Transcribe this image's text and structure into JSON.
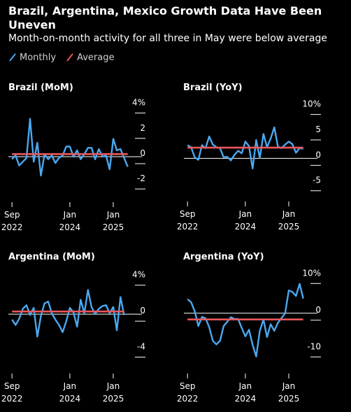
{
  "header": {
    "title": "Brazil, Argentina, Mexico Growth Data Have Been Uneven",
    "subtitle": "Month-on-month activity for all three in May were below average"
  },
  "legend": [
    {
      "label": "Monthly",
      "color": "#4aa8f0"
    },
    {
      "label": "Average",
      "color": "#e8575b"
    }
  ],
  "colors": {
    "monthly": "#4aa8f0",
    "average": "#e8575b",
    "axis": "#ffffff",
    "background": "#000000"
  },
  "chart_data": [
    {
      "type": "line",
      "title": "Brazil (MoM)",
      "x_ticks": [
        {
          "month": "2022-09",
          "top": "Sep",
          "bottom": "2022"
        },
        {
          "month": "2024-01",
          "top": "Jan",
          "bottom": "2024"
        },
        {
          "month": "2025-01",
          "top": "Jan",
          "bottom": "2025"
        }
      ],
      "x_range": [
        "2022-08",
        "2025-07"
      ],
      "ylim": [
        -2.6,
        4.2
      ],
      "y_ticks": [
        {
          "value": 4,
          "label": "4%"
        },
        {
          "value": 2,
          "label": "2"
        },
        {
          "value": 0,
          "label": "0"
        },
        {
          "value": -2,
          "label": "-2"
        }
      ],
      "average": 0.2,
      "series": [
        {
          "values": [
            {
              "month": "2022-09",
              "value": -0.2
            },
            {
              "month": "2022-10",
              "value": 0.1
            },
            {
              "month": "2022-11",
              "value": -0.7
            },
            {
              "month": "2022-12",
              "value": -0.4
            },
            {
              "month": "2023-01",
              "value": -0.1
            },
            {
              "month": "2023-02",
              "value": 3.0
            },
            {
              "month": "2023-03",
              "value": -0.4
            },
            {
              "month": "2023-04",
              "value": 1.1
            },
            {
              "month": "2023-05",
              "value": -1.5
            },
            {
              "month": "2023-06",
              "value": 0.2
            },
            {
              "month": "2023-07",
              "value": -0.2
            },
            {
              "month": "2023-08",
              "value": 0.1
            },
            {
              "month": "2023-09",
              "value": -0.5
            },
            {
              "month": "2023-10",
              "value": -0.1
            },
            {
              "month": "2023-11",
              "value": 0.1
            },
            {
              "month": "2023-12",
              "value": 0.8
            },
            {
              "month": "2024-01",
              "value": 0.8
            },
            {
              "month": "2024-02",
              "value": 0.0
            },
            {
              "month": "2024-03",
              "value": 0.5
            },
            {
              "month": "2024-04",
              "value": -0.2
            },
            {
              "month": "2024-05",
              "value": 0.2
            },
            {
              "month": "2024-06",
              "value": 0.7
            },
            {
              "month": "2024-07",
              "value": 0.7
            },
            {
              "month": "2024-08",
              "value": -0.2
            },
            {
              "month": "2024-09",
              "value": 0.6
            },
            {
              "month": "2024-10",
              "value": 0.0
            },
            {
              "month": "2024-11",
              "value": 0.1
            },
            {
              "month": "2024-12",
              "value": -1.0
            },
            {
              "month": "2025-01",
              "value": 1.4
            },
            {
              "month": "2025-02",
              "value": 0.5
            },
            {
              "month": "2025-03",
              "value": 0.6
            },
            {
              "month": "2025-04",
              "value": -0.1
            },
            {
              "month": "2025-05",
              "value": -0.8
            }
          ]
        }
      ]
    },
    {
      "type": "line",
      "title": "Brazil (YoY)",
      "x_ticks": [
        {
          "month": "2022-09",
          "top": "Sep",
          "bottom": "2022"
        },
        {
          "month": "2024-01",
          "top": "Jan",
          "bottom": "2024"
        },
        {
          "month": "2025-01",
          "top": "Jan",
          "bottom": "2025"
        }
      ],
      "x_range": [
        "2022-08",
        "2025-07"
      ],
      "ylim": [
        -6,
        10.5
      ],
      "y_ticks": [
        {
          "value": 10,
          "label": "10%"
        },
        {
          "value": 5,
          "label": "5"
        },
        {
          "value": 0,
          "label": "0"
        },
        {
          "value": -5,
          "label": "-5"
        }
      ],
      "average": 2.1,
      "series": [
        {
          "values": [
            {
              "month": "2022-09",
              "value": 2.6
            },
            {
              "month": "2022-10",
              "value": 2.2
            },
            {
              "month": "2022-11",
              "value": 0.2
            },
            {
              "month": "2022-12",
              "value": -0.3
            },
            {
              "month": "2023-01",
              "value": 2.6
            },
            {
              "month": "2023-02",
              "value": 2.0
            },
            {
              "month": "2023-03",
              "value": 4.3
            },
            {
              "month": "2023-04",
              "value": 2.7
            },
            {
              "month": "2023-05",
              "value": 2.2
            },
            {
              "month": "2023-06",
              "value": 2.0
            },
            {
              "month": "2023-07",
              "value": 0.2
            },
            {
              "month": "2023-08",
              "value": 0.3
            },
            {
              "month": "2023-09",
              "value": -0.4
            },
            {
              "month": "2023-10",
              "value": 0.7
            },
            {
              "month": "2023-11",
              "value": 1.5
            },
            {
              "month": "2023-12",
              "value": 1.0
            },
            {
              "month": "2024-01",
              "value": 3.3
            },
            {
              "month": "2024-02",
              "value": 2.4
            },
            {
              "month": "2024-03",
              "value": -2.0
            },
            {
              "month": "2024-04",
              "value": 3.6
            },
            {
              "month": "2024-05",
              "value": 0.1
            },
            {
              "month": "2024-06",
              "value": 4.8
            },
            {
              "month": "2024-07",
              "value": 2.2
            },
            {
              "month": "2024-08",
              "value": 3.9
            },
            {
              "month": "2024-09",
              "value": 6.1
            },
            {
              "month": "2024-10",
              "value": 2.3
            },
            {
              "month": "2024-11",
              "value": 2.0
            },
            {
              "month": "2024-12",
              "value": 2.7
            },
            {
              "month": "2025-01",
              "value": 3.3
            },
            {
              "month": "2025-02",
              "value": 2.8
            },
            {
              "month": "2025-03",
              "value": 1.1
            },
            {
              "month": "2025-04",
              "value": 2.0
            },
            {
              "month": "2025-05",
              "value": 1.9
            }
          ]
        }
      ]
    },
    {
      "type": "line",
      "title": "Argentina (MoM)",
      "x_ticks": [
        {
          "month": "2022-09",
          "top": "Sep",
          "bottom": "2022"
        },
        {
          "month": "2024-01",
          "top": "Jan",
          "bottom": "2024"
        },
        {
          "month": "2025-01",
          "top": "Jan",
          "bottom": "2025"
        }
      ],
      "x_range": [
        "2022-08",
        "2025-07"
      ],
      "ylim": [
        -5.2,
        4.6
      ],
      "y_ticks": [
        {
          "value": 4,
          "label": "4%"
        },
        {
          "value": 0,
          "label": "0"
        },
        {
          "value": -4,
          "label": "-4"
        }
      ],
      "average": 0.3,
      "series": [
        {
          "values": [
            {
              "month": "2022-09",
              "value": -0.6
            },
            {
              "month": "2022-10",
              "value": -1.2
            },
            {
              "month": "2022-11",
              "value": -0.5
            },
            {
              "month": "2022-12",
              "value": 0.6
            },
            {
              "month": "2023-01",
              "value": 1.0
            },
            {
              "month": "2023-02",
              "value": -0.1
            },
            {
              "month": "2023-03",
              "value": 0.7
            },
            {
              "month": "2023-04",
              "value": -2.5
            },
            {
              "month": "2023-05",
              "value": -0.2
            },
            {
              "month": "2023-06",
              "value": 1.2
            },
            {
              "month": "2023-07",
              "value": 1.4
            },
            {
              "month": "2023-08",
              "value": 0.1
            },
            {
              "month": "2023-09",
              "value": -0.6
            },
            {
              "month": "2023-10",
              "value": -1.2
            },
            {
              "month": "2023-11",
              "value": -2.0
            },
            {
              "month": "2023-12",
              "value": -0.8
            },
            {
              "month": "2024-01",
              "value": 0.7
            },
            {
              "month": "2024-02",
              "value": 0.2
            },
            {
              "month": "2024-03",
              "value": -1.4
            },
            {
              "month": "2024-04",
              "value": 1.6
            },
            {
              "month": "2024-05",
              "value": 0.1
            },
            {
              "month": "2024-06",
              "value": 2.7
            },
            {
              "month": "2024-07",
              "value": 0.8
            },
            {
              "month": "2024-08",
              "value": 0.0
            },
            {
              "month": "2024-09",
              "value": 0.6
            },
            {
              "month": "2024-10",
              "value": 0.9
            },
            {
              "month": "2024-11",
              "value": 1.0
            },
            {
              "month": "2024-12",
              "value": 0.1
            },
            {
              "month": "2025-01",
              "value": 0.8
            },
            {
              "month": "2025-02",
              "value": -1.8
            },
            {
              "month": "2025-03",
              "value": 1.9
            },
            {
              "month": "2025-04",
              "value": -0.1
            }
          ]
        }
      ]
    },
    {
      "type": "line",
      "title": "Argentina (YoY)",
      "x_ticks": [
        {
          "month": "2022-09",
          "top": "Sep",
          "bottom": "2022"
        },
        {
          "month": "2024-01",
          "top": "Jan",
          "bottom": "2024"
        },
        {
          "month": "2025-01",
          "top": "Jan",
          "bottom": "2025"
        }
      ],
      "x_range": [
        "2022-08",
        "2025-07"
      ],
      "ylim": [
        -13,
        11
      ],
      "y_ticks": [
        {
          "value": 10,
          "label": "10%"
        },
        {
          "value": 0,
          "label": "0"
        },
        {
          "value": -10,
          "label": "-10"
        }
      ],
      "average": -1.7,
      "series": [
        {
          "values": [
            {
              "month": "2022-09",
              "value": 3.8
            },
            {
              "month": "2022-10",
              "value": 3.0
            },
            {
              "month": "2022-11",
              "value": 0.5
            },
            {
              "month": "2022-12",
              "value": -3.5
            },
            {
              "month": "2023-01",
              "value": -1.0
            },
            {
              "month": "2023-02",
              "value": -1.4
            },
            {
              "month": "2023-03",
              "value": -3.8
            },
            {
              "month": "2023-04",
              "value": -7.5
            },
            {
              "month": "2023-05",
              "value": -8.5
            },
            {
              "month": "2023-06",
              "value": -7.5
            },
            {
              "month": "2023-07",
              "value": -3.5
            },
            {
              "month": "2023-08",
              "value": -2.3
            },
            {
              "month": "2023-09",
              "value": -1.1
            },
            {
              "month": "2023-10",
              "value": -1.6
            },
            {
              "month": "2023-11",
              "value": -1.6
            },
            {
              "month": "2023-12",
              "value": -4.0
            },
            {
              "month": "2024-01",
              "value": -6.3
            },
            {
              "month": "2024-02",
              "value": -4.5
            },
            {
              "month": "2024-03",
              "value": -8.6
            },
            {
              "month": "2024-04",
              "value": -11.8
            },
            {
              "month": "2024-05",
              "value": -4.8
            },
            {
              "month": "2024-06",
              "value": -1.7
            },
            {
              "month": "2024-07",
              "value": -6.5
            },
            {
              "month": "2024-08",
              "value": -3.0
            },
            {
              "month": "2024-09",
              "value": -4.8
            },
            {
              "month": "2024-10",
              "value": -2.6
            },
            {
              "month": "2024-11",
              "value": -1.3
            },
            {
              "month": "2024-12",
              "value": 0.0
            },
            {
              "month": "2025-01",
              "value": 6.2
            },
            {
              "month": "2025-02",
              "value": 5.8
            },
            {
              "month": "2025-03",
              "value": 4.7
            },
            {
              "month": "2025-04",
              "value": 8.0
            },
            {
              "month": "2025-05",
              "value": 4.0
            }
          ]
        }
      ]
    }
  ]
}
